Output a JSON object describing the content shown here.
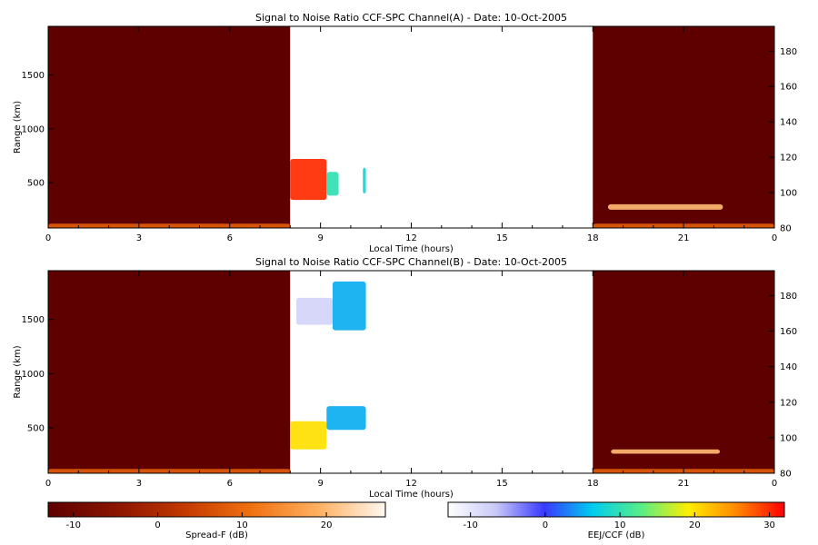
{
  "chart_data": [
    {
      "type": "heatmap",
      "title": "Signal to Noise Ratio CCF-SPC Channel(A) - Date: 10-Oct-2005",
      "xlabel": "Local Time (hours)",
      "ylabel": "Range (km)",
      "xlim": [
        0,
        24
      ],
      "ylim_left": [
        80,
        1950
      ],
      "ylim_right": [
        80,
        194
      ],
      "x_ticks": [
        "0",
        "3",
        "6",
        "9",
        "12",
        "15",
        "18",
        "21",
        "0"
      ],
      "y_left_ticks": [
        "500",
        "1000",
        "1500"
      ],
      "y_right_ticks": [
        "80",
        "100",
        "120",
        "140",
        "160",
        "180"
      ],
      "regions": [
        {
          "name": "Spread-F",
          "x_range": [
            0,
            8.0
          ],
          "level_db": -13
        },
        {
          "name": "EEJ/CCF",
          "x_range": [
            8.0,
            18.0
          ]
        },
        {
          "name": "Spread-F",
          "x_range": [
            18.0,
            24.0
          ],
          "level_db": -13
        }
      ],
      "echoes": [
        {
          "scale": "spreadf",
          "x": [
            0,
            8
          ],
          "y": [
            80,
            120
          ],
          "level_db": 8
        },
        {
          "scale": "spreadf",
          "x": [
            18,
            24
          ],
          "y": [
            80,
            120
          ],
          "level_db": 8
        },
        {
          "scale": "spreadf",
          "x": [
            18.5,
            22.3
          ],
          "y": [
            250,
            300
          ],
          "level_db": 20
        },
        {
          "scale": "eej",
          "x": [
            8.0,
            9.2
          ],
          "y": [
            340,
            720
          ],
          "level_db": 30
        },
        {
          "scale": "eej",
          "x": [
            9.2,
            9.6
          ],
          "y": [
            380,
            600
          ],
          "level_db": 10
        },
        {
          "scale": "eej",
          "x": [
            10.4,
            10.5
          ],
          "y": [
            400,
            640
          ],
          "level_db": 8
        }
      ]
    },
    {
      "type": "heatmap",
      "title": "Signal to Noise Ratio CCF-SPC Channel(B) - Date: 10-Oct-2005",
      "xlabel": "Local Time (hours)",
      "ylabel": "Range (km)",
      "xlim": [
        0,
        24
      ],
      "ylim_left": [
        80,
        1950
      ],
      "ylim_right": [
        80,
        194
      ],
      "x_ticks": [
        "0",
        "3",
        "6",
        "9",
        "12",
        "15",
        "18",
        "21",
        "0"
      ],
      "y_left_ticks": [
        "500",
        "1000",
        "1500"
      ],
      "y_right_ticks": [
        "80",
        "100",
        "120",
        "140",
        "160",
        "180"
      ],
      "regions": [
        {
          "name": "Spread-F",
          "x_range": [
            0,
            8.0
          ],
          "level_db": -13
        },
        {
          "name": "EEJ/CCF",
          "x_range": [
            8.0,
            18.0
          ]
        },
        {
          "name": "Spread-F",
          "x_range": [
            18.0,
            24.0
          ],
          "level_db": -13
        }
      ],
      "echoes": [
        {
          "scale": "spreadf",
          "x": [
            0,
            8
          ],
          "y": [
            80,
            120
          ],
          "level_db": 8
        },
        {
          "scale": "spreadf",
          "x": [
            18,
            24
          ],
          "y": [
            80,
            120
          ],
          "level_db": 8
        },
        {
          "scale": "spreadf",
          "x": [
            18.6,
            22.2
          ],
          "y": [
            260,
            300
          ],
          "level_db": 20
        },
        {
          "scale": "eej",
          "x": [
            8.0,
            9.2
          ],
          "y": [
            300,
            560
          ],
          "level_db": 20
        },
        {
          "scale": "eej",
          "x": [
            9.2,
            10.5
          ],
          "y": [
            480,
            700
          ],
          "level_db": 5
        },
        {
          "scale": "eej",
          "x": [
            8.2,
            9.4
          ],
          "y": [
            1450,
            1700
          ],
          "level_db": -8
        },
        {
          "scale": "eej",
          "x": [
            9.4,
            10.5
          ],
          "y": [
            1400,
            1850
          ],
          "level_db": 5
        }
      ]
    }
  ],
  "colorbars": [
    {
      "label": "Spread-F (dB)",
      "range": [
        -13,
        27
      ],
      "ticks": [
        "-10",
        "0",
        "10",
        "20"
      ]
    },
    {
      "label": "EEJ/CCF (dB)",
      "range": [
        -13,
        32
      ],
      "ticks": [
        "-10",
        "0",
        "10",
        "20",
        "30"
      ]
    }
  ],
  "colors": {
    "spreadf_background": "#630000",
    "spreadf_scale": [
      "#5e0000",
      "#8a1400",
      "#c23800",
      "#f07010",
      "#ffb060",
      "#fff8f0"
    ],
    "eej_scale": [
      "#ffffff",
      "#c8c8f8",
      "#3838ff",
      "#00ccee",
      "#55ee88",
      "#ffee00",
      "#ff8800",
      "#ff0000"
    ]
  }
}
